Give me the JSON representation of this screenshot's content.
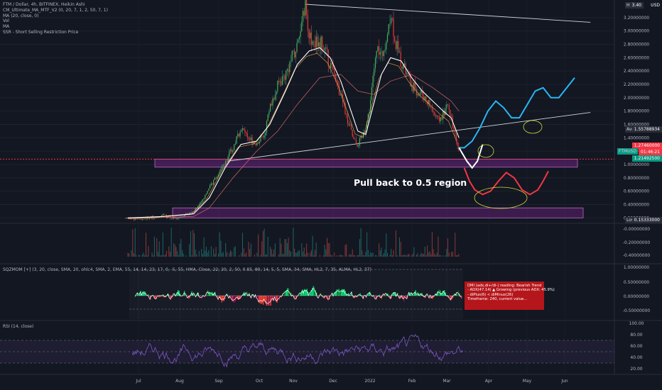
{
  "legend": {
    "title": "FTM / Dollar, 4h, BITFINEX, Heikin Ashi",
    "lines": [
      "CM_Ultimate_MA_MTF_V2 (0, 20, 7, 1, 2, 50, 7, 1)",
      "MA (20, close, 0)",
      "Vol",
      "MA",
      "SSR - Short Selling Restriction Price"
    ],
    "sqz": "SQZMOM [+] (3, 20, close, SMA, 20, ohlc4, SMA, 2, EMA, 55, 14, 14, 23, 17, 0, -5, 55, HMA, Close, 22, 20, 2, 50, 0.85, 80, 14, 5, 5, SMA, 34, SMA, HL2, 7, 35, ALMA, HL2, 37)",
    "rsi": "RSI (14, close)"
  },
  "annotation": "Pull back to 0.5 region",
  "dmi_box": {
    "lines": [
      "DMI (adx,di+/di-) reading: Bearish Trend",
      " - ADX(47.14)  ▲ Growing (previous ADX: 45.9%)",
      " - diPlus(6) < diMinus(26)",
      "",
      "Timeframe: 240, current value..."
    ]
  },
  "price_tags": {
    "high": "High",
    "high_value": "3.40",
    "currency": "USD",
    "avg": "Avg",
    "avg_value": "1.55788934",
    "last": "1.27460000",
    "timer": "01:46:21",
    "ticker": "FTMUSD",
    "ticker_value": "1.21492500",
    "low": "Low",
    "low_value": "0.15333000"
  },
  "chart_data": [
    {
      "type": "candlestick",
      "title": "FTM / Dollar, 4h, BITFINEX, Heikin Ashi",
      "x_ticks": [
        "Jul",
        "Aug",
        "Sep",
        "Oct",
        "Nov",
        "Dec",
        "2022",
        "Feb",
        "Mar",
        "Apr",
        "May",
        "Jun"
      ],
      "y_ticks": [
        "3.20000000",
        "3.00000000",
        "2.80000000",
        "2.60000000",
        "2.40000000",
        "2.20000000",
        "2.00000000",
        "1.80000000",
        "1.60000000",
        "1.40000000",
        "1.20000000",
        "1.00000000",
        "0.80000000",
        "0.60000000",
        "0.40000000",
        "0.20000000"
      ],
      "ylim": [
        0.15,
        3.4
      ],
      "price_path": [
        [
          0,
          0.2
        ],
        [
          0.04,
          0.18
        ],
        [
          0.09,
          0.2
        ],
        [
          0.13,
          0.25
        ],
        [
          0.17,
          0.18
        ],
        [
          0.21,
          0.24
        ],
        [
          0.25,
          0.3
        ],
        [
          0.28,
          0.45
        ],
        [
          0.31,
          0.65
        ],
        [
          0.34,
          0.85
        ],
        [
          0.37,
          1.05
        ],
        [
          0.4,
          1.25
        ],
        [
          0.43,
          1.55
        ],
        [
          0.46,
          1.4
        ],
        [
          0.49,
          1.3
        ],
        [
          0.52,
          1.45
        ],
        [
          0.54,
          1.85
        ],
        [
          0.57,
          2.2
        ],
        [
          0.6,
          2.35
        ],
        [
          0.62,
          2.55
        ],
        [
          0.645,
          2.8
        ],
        [
          0.66,
          3.05
        ],
        [
          0.675,
          3.4
        ],
        [
          0.69,
          2.95
        ],
        [
          0.71,
          2.8
        ],
        [
          0.73,
          2.85
        ],
        [
          0.75,
          2.7
        ],
        [
          0.77,
          2.5
        ],
        [
          0.79,
          2.3
        ],
        [
          0.81,
          2.05
        ],
        [
          0.83,
          1.75
        ],
        [
          0.845,
          1.55
        ],
        [
          0.86,
          1.35
        ],
        [
          0.875,
          1.3
        ],
        [
          0.89,
          1.4
        ],
        [
          0.905,
          1.55
        ],
        [
          0.92,
          1.85
        ],
        [
          0.935,
          2.35
        ],
        [
          0.95,
          2.75
        ],
        [
          0.965,
          2.6
        ],
        [
          0.98,
          2.85
        ],
        [
          1.0,
          3.3
        ],
        [
          1.02,
          2.8
        ],
        [
          1.04,
          2.55
        ],
        [
          1.06,
          2.35
        ],
        [
          1.08,
          2.2
        ],
        [
          1.1,
          2.1
        ],
        [
          1.12,
          2.05
        ],
        [
          1.14,
          1.95
        ],
        [
          1.16,
          1.8
        ],
        [
          1.18,
          1.65
        ],
        [
          1.2,
          1.75
        ],
        [
          1.215,
          1.9
        ],
        [
          1.23,
          1.7
        ],
        [
          1.245,
          1.45
        ],
        [
          1.26,
          1.25
        ]
      ],
      "ma_path": [
        [
          0,
          0.2
        ],
        [
          0.13,
          0.22
        ],
        [
          0.25,
          0.26
        ],
        [
          0.31,
          0.5
        ],
        [
          0.37,
          0.95
        ],
        [
          0.43,
          1.3
        ],
        [
          0.49,
          1.35
        ],
        [
          0.54,
          1.6
        ],
        [
          0.6,
          2.1
        ],
        [
          0.645,
          2.5
        ],
        [
          0.69,
          2.7
        ],
        [
          0.73,
          2.75
        ],
        [
          0.77,
          2.6
        ],
        [
          0.81,
          2.25
        ],
        [
          0.845,
          1.85
        ],
        [
          0.875,
          1.5
        ],
        [
          0.905,
          1.45
        ],
        [
          0.935,
          1.9
        ],
        [
          0.965,
          2.35
        ],
        [
          1.0,
          2.6
        ],
        [
          1.04,
          2.55
        ],
        [
          1.08,
          2.3
        ],
        [
          1.12,
          2.1
        ],
        [
          1.16,
          1.95
        ],
        [
          1.2,
          1.8
        ],
        [
          1.23,
          1.7
        ],
        [
          1.26,
          1.4
        ]
      ],
      "slow_ma_path": [
        [
          0,
          0.19
        ],
        [
          0.25,
          0.22
        ],
        [
          0.31,
          0.35
        ],
        [
          0.4,
          0.8
        ],
        [
          0.49,
          1.2
        ],
        [
          0.57,
          1.5
        ],
        [
          0.645,
          1.9
        ],
        [
          0.73,
          2.3
        ],
        [
          0.81,
          2.35
        ],
        [
          0.875,
          2.1
        ],
        [
          0.935,
          2.05
        ],
        [
          1.0,
          2.25
        ],
        [
          1.08,
          2.35
        ],
        [
          1.16,
          2.15
        ],
        [
          1.23,
          1.95
        ],
        [
          1.26,
          1.8
        ]
      ],
      "projection_up": [
        [
          1.26,
          1.25
        ],
        [
          1.28,
          1.25
        ],
        [
          1.31,
          1.35
        ],
        [
          1.34,
          1.55
        ],
        [
          1.37,
          1.8
        ],
        [
          1.4,
          1.95
        ],
        [
          1.43,
          1.85
        ],
        [
          1.46,
          1.7
        ],
        [
          1.49,
          1.7
        ],
        [
          1.52,
          1.9
        ],
        [
          1.55,
          2.1
        ],
        [
          1.58,
          2.15
        ],
        [
          1.61,
          2.0
        ],
        [
          1.64,
          2.0
        ],
        [
          1.67,
          2.15
        ],
        [
          1.7,
          2.3
        ]
      ],
      "projection_pull": [
        [
          1.26,
          1.25
        ],
        [
          1.29,
          1.05
        ],
        [
          1.31,
          0.95
        ],
        [
          1.33,
          1.05
        ],
        [
          1.35,
          1.3
        ]
      ],
      "projection_down": [
        [
          1.28,
          0.95
        ],
        [
          1.3,
          0.75
        ],
        [
          1.32,
          0.62
        ],
        [
          1.35,
          0.55
        ],
        [
          1.38,
          0.6
        ],
        [
          1.41,
          0.75
        ],
        [
          1.44,
          0.88
        ],
        [
          1.47,
          0.8
        ],
        [
          1.5,
          0.62
        ],
        [
          1.53,
          0.55
        ],
        [
          1.56,
          0.62
        ],
        [
          1.58,
          0.75
        ],
        [
          1.6,
          0.9
        ]
      ],
      "zones": [
        {
          "from": 0.96,
          "to": 1.08
        },
        {
          "from": 0.2,
          "to": 0.35
        }
      ],
      "trendlines": [
        {
          "from": [
            0.675,
            3.4
          ],
          "to": [
            1.76,
            3.13
          ]
        },
        {
          "from": [
            0.38,
            1.05
          ],
          "to": [
            1.76,
            1.78
          ]
        }
      ],
      "dotted_level": 1.08
    },
    {
      "type": "bar",
      "title": "Vol",
      "y_ticks": [
        "-0.00000000",
        "-0.20000000",
        "-0.40000000"
      ]
    },
    {
      "type": "bar",
      "title": "SQZMOM",
      "y_ticks": [
        "1.00000000",
        "0.50000000",
        "0.00000000",
        "-0.50000000"
      ]
    },
    {
      "type": "line",
      "title": "RSI (14, close)",
      "y_ticks": [
        "100.00",
        "80.00",
        "60.00",
        "40.00",
        "20.00"
      ],
      "ylim": [
        10,
        100
      ]
    }
  ]
}
